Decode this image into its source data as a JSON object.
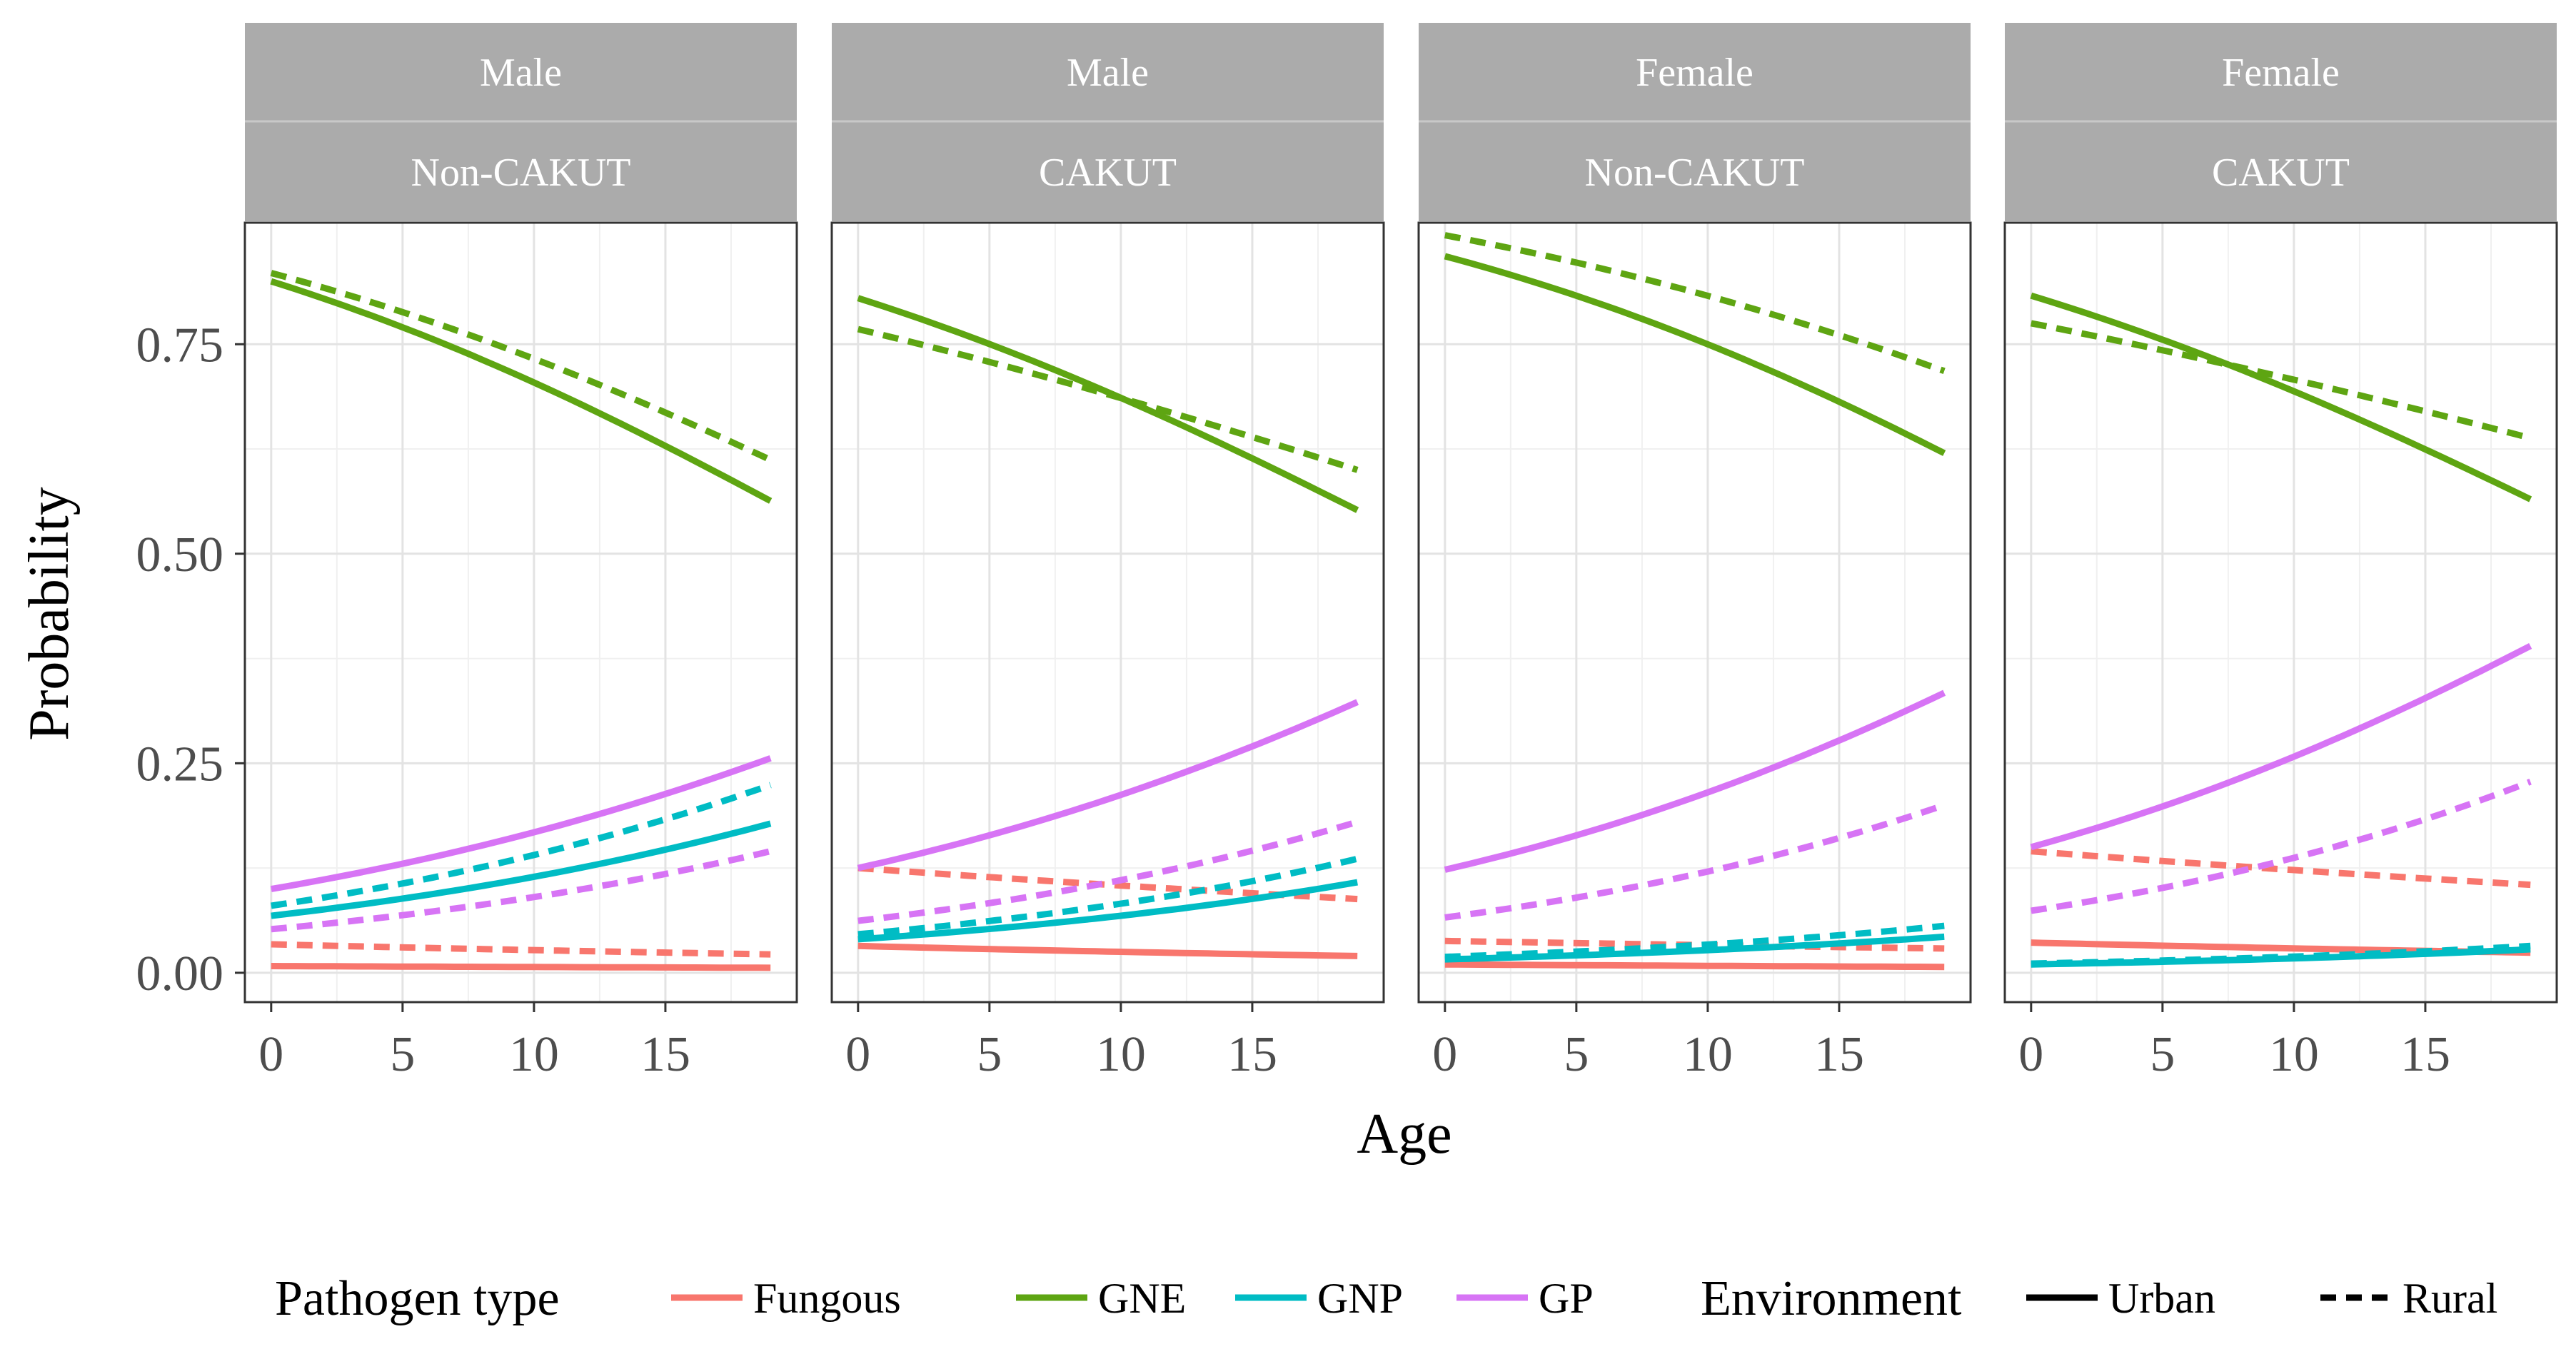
{
  "chart_data": {
    "type": "line",
    "xlabel": "Age",
    "ylabel": "Probability",
    "xlim": [
      -1,
      20
    ],
    "ylim": [
      -0.035,
      0.895
    ],
    "x_ticks": [
      0,
      5,
      10,
      15
    ],
    "x_tick_labels": [
      "0",
      "5",
      "10",
      "15"
    ],
    "y_ticks": [
      0,
      0.25,
      0.5,
      0.75
    ],
    "y_tick_labels": [
      "0.00",
      "0.25",
      "0.50",
      "0.75"
    ],
    "x_range": [
      0,
      19
    ],
    "grid": true,
    "colors": {
      "Fungous": "#F8766D",
      "GNE": "#5EA512",
      "GNP": "#00BCC4",
      "GP": "#D774F5"
    },
    "legend": {
      "placement": "bottom",
      "pathogen_title": "Pathogen type",
      "pathogen_items": [
        "Fungous",
        "GNE",
        "GNP",
        "GP"
      ],
      "environment_title": "Environment",
      "environment_items": [
        "Urban",
        "Rural"
      ]
    },
    "panels": [
      {
        "sex": "Male",
        "group": "Non-CAKUT",
        "series": [
          {
            "pathogen": "Fungous",
            "environment": "Urban",
            "start": 0.008,
            "end": 0.006
          },
          {
            "pathogen": "Fungous",
            "environment": "Rural",
            "start": 0.034,
            "end": 0.022
          },
          {
            "pathogen": "GNE",
            "environment": "Urban",
            "start": 0.825,
            "end": 0.563
          },
          {
            "pathogen": "GNE",
            "environment": "Rural",
            "start": 0.835,
            "end": 0.612
          },
          {
            "pathogen": "GNP",
            "environment": "Urban",
            "start": 0.068,
            "end": 0.178
          },
          {
            "pathogen": "GNP",
            "environment": "Rural",
            "start": 0.08,
            "end": 0.224
          },
          {
            "pathogen": "GP",
            "environment": "Urban",
            "start": 0.1,
            "end": 0.256
          },
          {
            "pathogen": "GP",
            "environment": "Rural",
            "start": 0.052,
            "end": 0.145
          }
        ]
      },
      {
        "sex": "Male",
        "group": "CAKUT",
        "series": [
          {
            "pathogen": "Fungous",
            "environment": "Urban",
            "start": 0.032,
            "end": 0.02
          },
          {
            "pathogen": "Fungous",
            "environment": "Rural",
            "start": 0.125,
            "end": 0.088
          },
          {
            "pathogen": "GNE",
            "environment": "Urban",
            "start": 0.805,
            "end": 0.552
          },
          {
            "pathogen": "GNE",
            "environment": "Rural",
            "start": 0.768,
            "end": 0.6
          },
          {
            "pathogen": "GNP",
            "environment": "Urban",
            "start": 0.04,
            "end": 0.108
          },
          {
            "pathogen": "GNP",
            "environment": "Rural",
            "start": 0.046,
            "end": 0.136
          },
          {
            "pathogen": "GP",
            "environment": "Urban",
            "start": 0.125,
            "end": 0.323
          },
          {
            "pathogen": "GP",
            "environment": "Rural",
            "start": 0.062,
            "end": 0.18
          }
        ]
      },
      {
        "sex": "Female",
        "group": "Non-CAKUT",
        "series": [
          {
            "pathogen": "Fungous",
            "environment": "Urban",
            "start": 0.01,
            "end": 0.007
          },
          {
            "pathogen": "Fungous",
            "environment": "Rural",
            "start": 0.038,
            "end": 0.029
          },
          {
            "pathogen": "GNE",
            "environment": "Urban",
            "start": 0.855,
            "end": 0.62
          },
          {
            "pathogen": "GNE",
            "environment": "Rural",
            "start": 0.88,
            "end": 0.718
          },
          {
            "pathogen": "GNP",
            "environment": "Urban",
            "start": 0.016,
            "end": 0.043
          },
          {
            "pathogen": "GNP",
            "environment": "Rural",
            "start": 0.019,
            "end": 0.056
          },
          {
            "pathogen": "GP",
            "environment": "Urban",
            "start": 0.123,
            "end": 0.334
          },
          {
            "pathogen": "GP",
            "environment": "Rural",
            "start": 0.066,
            "end": 0.2
          }
        ]
      },
      {
        "sex": "Female",
        "group": "CAKUT",
        "series": [
          {
            "pathogen": "Fungous",
            "environment": "Urban",
            "start": 0.036,
            "end": 0.024
          },
          {
            "pathogen": "Fungous",
            "environment": "Rural",
            "start": 0.145,
            "end": 0.105
          },
          {
            "pathogen": "GNE",
            "environment": "Urban",
            "start": 0.808,
            "end": 0.565
          },
          {
            "pathogen": "GNE",
            "environment": "Rural",
            "start": 0.775,
            "end": 0.638
          },
          {
            "pathogen": "GNP",
            "environment": "Urban",
            "start": 0.01,
            "end": 0.028
          },
          {
            "pathogen": "GNP",
            "environment": "Rural",
            "start": 0.011,
            "end": 0.032
          },
          {
            "pathogen": "GP",
            "environment": "Urban",
            "start": 0.15,
            "end": 0.39
          },
          {
            "pathogen": "GP",
            "environment": "Rural",
            "start": 0.074,
            "end": 0.228
          }
        ]
      }
    ]
  }
}
